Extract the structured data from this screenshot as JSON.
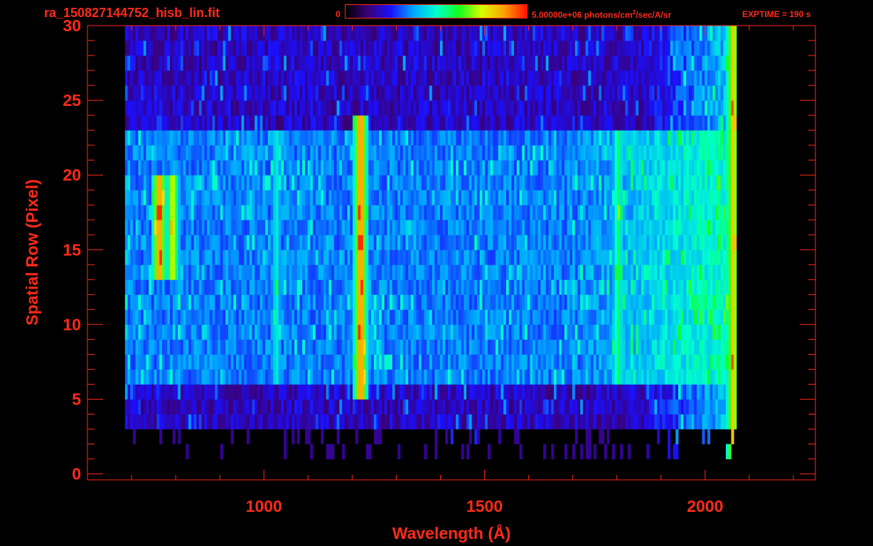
{
  "header": {
    "filename": "ra_150827144752_hisb_lin.fit",
    "colorbar_min_label": "0",
    "colorbar_max_label_pre": "5.00000e+06 photons/cm",
    "colorbar_max_label_sup": "2",
    "colorbar_max_label_post": "/sec/A/sr",
    "exptime": "EXPTIME = 190 s"
  },
  "colors": {
    "axis": "#ff2a1a",
    "background": "#000000",
    "colormap": [
      "#000000",
      "#3a0078",
      "#1a10ff",
      "#00a8ff",
      "#00ffd0",
      "#10ff20",
      "#d8ff00",
      "#ffa000",
      "#ff1000"
    ]
  },
  "chart_data": {
    "type": "heatmap",
    "title": "ra_150827144752_hisb_lin.fit",
    "xlabel": "Wavelength (Å)",
    "ylabel": "Spatial Row (Pixel)",
    "xlim": [
      600,
      2250
    ],
    "ylim": [
      -0.4,
      30
    ],
    "x_ticks": [
      1000,
      1500,
      2000
    ],
    "y_ticks": [
      0,
      5,
      10,
      15,
      20,
      25,
      30
    ],
    "zlim": [
      0,
      5000000
    ],
    "z_unit": "photons/cm^2/sec/A/sr",
    "spectrum_extent": {
      "wavelength": [
        685,
        2070
      ],
      "rows": [
        1,
        30
      ]
    },
    "emission_lines": [
      {
        "wavelength": 760,
        "rows": [
          13,
          20
        ],
        "peak": 0.95
      },
      {
        "wavelength": 790,
        "rows": [
          13,
          20
        ],
        "peak": 0.8
      },
      {
        "wavelength": 1025,
        "rows": [
          6,
          23
        ],
        "peak": 0.5
      },
      {
        "wavelength": 1216,
        "rows": [
          5,
          24
        ],
        "peak": 0.95
      },
      {
        "wavelength": 1800,
        "rows": [
          6,
          23
        ],
        "peak": 0.6
      },
      {
        "wavelength": 2060,
        "rows": [
          1,
          30
        ],
        "peak": 0.85
      }
    ],
    "bright_band_rows": [
      6,
      23
    ],
    "grid": false
  }
}
